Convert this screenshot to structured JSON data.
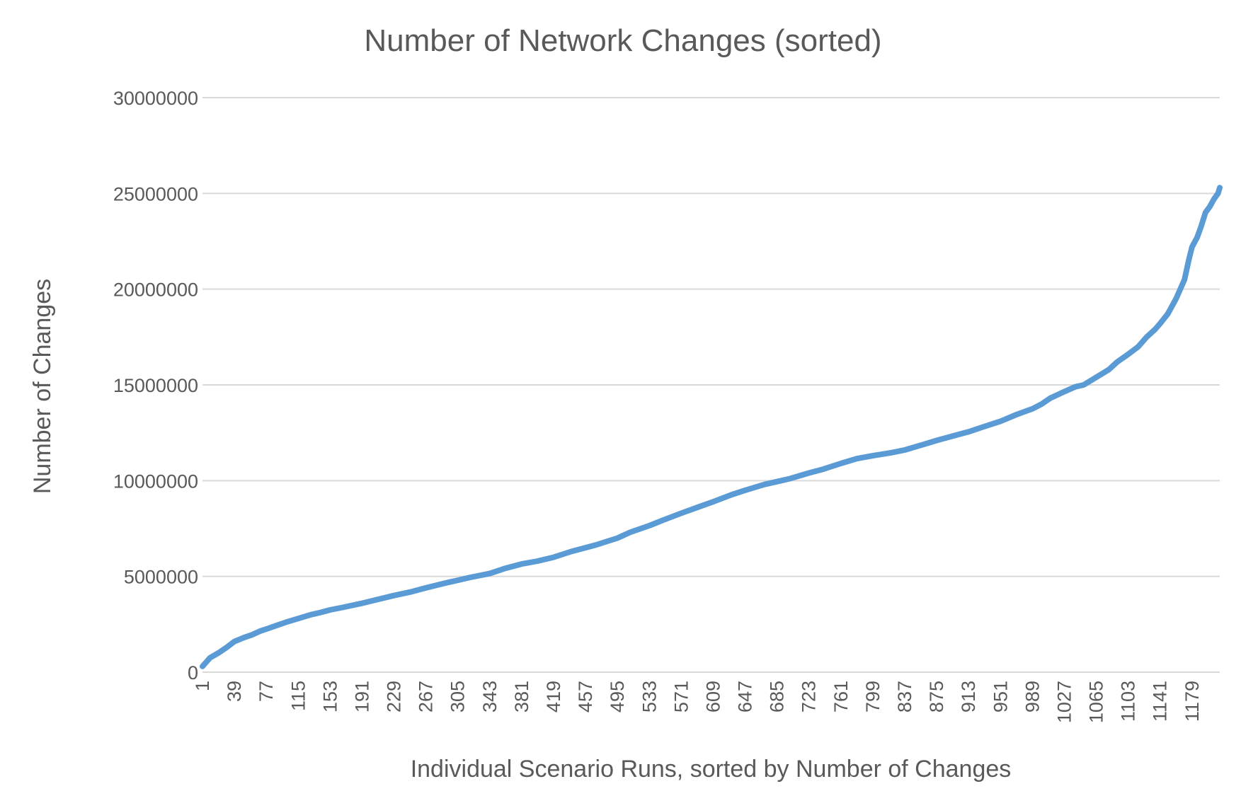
{
  "chart_data": {
    "type": "line",
    "title": "Number of Network Changes (sorted)",
    "xlabel": "Individual Scenario Runs, sorted by Number of Changes",
    "ylabel": "Number of Changes",
    "xlim": [
      1,
      1212
    ],
    "ylim": [
      0,
      30000000
    ],
    "yticks": [
      0,
      5000000,
      10000000,
      15000000,
      20000000,
      25000000,
      30000000
    ],
    "ytick_labels": [
      "0",
      "5000000",
      "10000000",
      "15000000",
      "20000000",
      "25000000",
      "30000000"
    ],
    "xticks": [
      1,
      39,
      77,
      115,
      153,
      191,
      229,
      267,
      305,
      343,
      381,
      419,
      457,
      495,
      533,
      571,
      609,
      647,
      685,
      723,
      761,
      799,
      837,
      875,
      913,
      951,
      989,
      1027,
      1065,
      1103,
      1141,
      1179
    ],
    "xtick_labels": [
      "1",
      "39",
      "77",
      "115",
      "153",
      "191",
      "229",
      "267",
      "305",
      "343",
      "381",
      "419",
      "457",
      "495",
      "533",
      "571",
      "609",
      "647",
      "685",
      "723",
      "761",
      "799",
      "837",
      "875",
      "913",
      "951",
      "989",
      "1027",
      "1065",
      "1103",
      "1141",
      "1179"
    ],
    "grid": true,
    "legend": "none",
    "series": [
      {
        "color": "#5b9bd5",
        "x": [
          1,
          5,
          10,
          20,
          30,
          39,
          50,
          60,
          70,
          77,
          90,
          100,
          115,
          130,
          140,
          153,
          170,
          191,
          210,
          229,
          250,
          267,
          290,
          305,
          320,
          343,
          360,
          381,
          400,
          419,
          440,
          457,
          470,
          495,
          510,
          533,
          550,
          571,
          590,
          609,
          630,
          647,
          670,
          685,
          700,
          723,
          740,
          761,
          780,
          799,
          820,
          837,
          860,
          875,
          900,
          913,
          930,
          951,
          970,
          989,
          1000,
          1010,
          1027,
          1040,
          1050,
          1065,
          1080,
          1090,
          1103,
          1115,
          1125,
          1135,
          1141,
          1150,
          1160,
          1165,
          1170,
          1175,
          1179,
          1185,
          1190,
          1195,
          1200,
          1205,
          1210,
          1212
        ],
        "values": [
          300000,
          500000,
          750000,
          1000000,
          1300000,
          1600000,
          1800000,
          1950000,
          2150000,
          2250000,
          2450000,
          2600000,
          2800000,
          3000000,
          3100000,
          3250000,
          3400000,
          3600000,
          3800000,
          4000000,
          4200000,
          4400000,
          4650000,
          4800000,
          4950000,
          5150000,
          5400000,
          5650000,
          5800000,
          6000000,
          6300000,
          6500000,
          6650000,
          7000000,
          7300000,
          7650000,
          7950000,
          8300000,
          8600000,
          8900000,
          9250000,
          9500000,
          9800000,
          9950000,
          10100000,
          10400000,
          10600000,
          10900000,
          11150000,
          11300000,
          11450000,
          11600000,
          11900000,
          12100000,
          12400000,
          12550000,
          12800000,
          13100000,
          13450000,
          13750000,
          14000000,
          14300000,
          14650000,
          14900000,
          15000000,
          15400000,
          15800000,
          16200000,
          16600000,
          17000000,
          17500000,
          17900000,
          18200000,
          18700000,
          19500000,
          20000000,
          20500000,
          21500000,
          22200000,
          22700000,
          23300000,
          24000000,
          24300000,
          24700000,
          25000000,
          25300000
        ]
      }
    ]
  }
}
